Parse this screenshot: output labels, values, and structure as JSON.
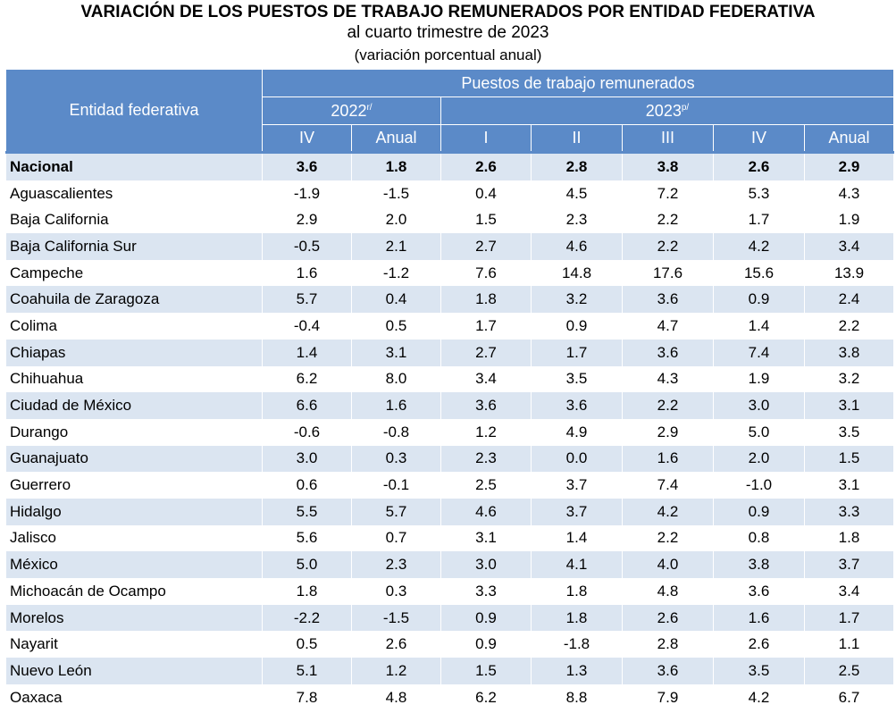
{
  "title": "VARIACIÓN DE LOS PUESTOS DE TRABAJO REMUNERADOS POR ENTIDAD FEDERATIVA",
  "subtitle": "al cuarto trimestre de 2023",
  "units": "(variación porcentual anual)",
  "header": {
    "entity_label": "Entidad federativa",
    "group_label": "Puestos de trabajo remunerados",
    "year_2022": "2022",
    "year_2022_note": "r/",
    "year_2023": "2023",
    "year_2023_note": "p/",
    "periods": [
      "IV",
      "Anual",
      "I",
      "II",
      "III",
      "IV",
      "Anual"
    ]
  },
  "rows": [
    {
      "entity": "Nacional",
      "values": [
        "3.6",
        "1.8",
        "2.6",
        "2.8",
        "3.8",
        "2.6",
        "2.9"
      ]
    },
    {
      "entity": "Aguascalientes",
      "values": [
        "-1.9",
        "-1.5",
        "0.4",
        "4.5",
        "7.2",
        "5.3",
        "4.3"
      ]
    },
    {
      "entity": "Baja California",
      "values": [
        "2.9",
        "2.0",
        "1.5",
        "2.3",
        "2.2",
        "1.7",
        "1.9"
      ]
    },
    {
      "entity": "Baja California Sur",
      "values": [
        "-0.5",
        "2.1",
        "2.7",
        "4.6",
        "2.2",
        "4.2",
        "3.4"
      ]
    },
    {
      "entity": "Campeche",
      "values": [
        "1.6",
        "-1.2",
        "7.6",
        "14.8",
        "17.6",
        "15.6",
        "13.9"
      ]
    },
    {
      "entity": "Coahuila de Zaragoza",
      "values": [
        "5.7",
        "0.4",
        "1.8",
        "3.2",
        "3.6",
        "0.9",
        "2.4"
      ]
    },
    {
      "entity": "Colima",
      "values": [
        "-0.4",
        "0.5",
        "1.7",
        "0.9",
        "4.7",
        "1.4",
        "2.2"
      ]
    },
    {
      "entity": "Chiapas",
      "values": [
        "1.4",
        "3.1",
        "2.7",
        "1.7",
        "3.6",
        "7.4",
        "3.8"
      ]
    },
    {
      "entity": "Chihuahua",
      "values": [
        "6.2",
        "8.0",
        "3.4",
        "3.5",
        "4.3",
        "1.9",
        "3.2"
      ]
    },
    {
      "entity": "Ciudad de México",
      "values": [
        "6.6",
        "1.6",
        "3.6",
        "3.6",
        "2.2",
        "3.0",
        "3.1"
      ]
    },
    {
      "entity": "Durango",
      "values": [
        "-0.6",
        "-0.8",
        "1.2",
        "4.9",
        "2.9",
        "5.0",
        "3.5"
      ]
    },
    {
      "entity": "Guanajuato",
      "values": [
        "3.0",
        "0.3",
        "2.3",
        "0.0",
        "1.6",
        "2.0",
        "1.5"
      ]
    },
    {
      "entity": "Guerrero",
      "values": [
        "0.6",
        "-0.1",
        "2.5",
        "3.7",
        "7.4",
        "-1.0",
        "3.1"
      ]
    },
    {
      "entity": "Hidalgo",
      "values": [
        "5.5",
        "5.7",
        "4.6",
        "3.7",
        "4.2",
        "0.9",
        "3.3"
      ]
    },
    {
      "entity": "Jalisco",
      "values": [
        "5.6",
        "0.7",
        "3.1",
        "1.4",
        "2.2",
        "0.8",
        "1.8"
      ]
    },
    {
      "entity": "México",
      "values": [
        "5.0",
        "2.3",
        "3.0",
        "4.1",
        "4.0",
        "3.8",
        "3.7"
      ]
    },
    {
      "entity": "Michoacán de Ocampo",
      "values": [
        "1.8",
        "0.3",
        "3.3",
        "1.8",
        "4.8",
        "3.6",
        "3.4"
      ]
    },
    {
      "entity": "Morelos",
      "values": [
        "-2.2",
        "-1.5",
        "0.9",
        "1.8",
        "2.6",
        "1.6",
        "1.7"
      ]
    },
    {
      "entity": "Nayarit",
      "values": [
        "0.5",
        "2.6",
        "0.9",
        "-1.8",
        "2.8",
        "2.6",
        "1.1"
      ]
    },
    {
      "entity": "Nuevo León",
      "values": [
        "5.1",
        "1.2",
        "1.5",
        "1.3",
        "3.6",
        "3.5",
        "2.5"
      ]
    },
    {
      "entity": "Oaxaca",
      "values": [
        "7.8",
        "4.8",
        "6.2",
        "8.8",
        "7.9",
        "4.2",
        "6.7"
      ]
    }
  ],
  "colors": {
    "header_bg": "#5b8ac8",
    "stripe": "#dbe5f1"
  }
}
